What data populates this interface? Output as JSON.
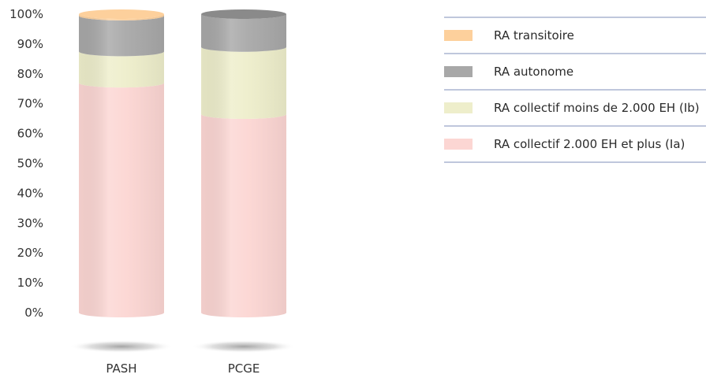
{
  "chart_data": {
    "type": "bar",
    "stacked": true,
    "categories": [
      "PASH",
      "PCGE"
    ],
    "y_ticks": [
      "0%",
      "10%",
      "20%",
      "30%",
      "40%",
      "50%",
      "60%",
      "70%",
      "80%",
      "90%",
      "100%"
    ],
    "ylim": [
      0,
      100
    ],
    "grid": false,
    "legend_position": "top-right",
    "series": [
      {
        "name": "RA collectif 2.000 EH et plus (Ia)",
        "color": "#fcd6d3",
        "values": [
          77,
          66.5
        ]
      },
      {
        "name": "RA collectif  moins de 2.000 EH (Ib)",
        "color": "#eeeecb",
        "values": [
          10.5,
          22.5
        ]
      },
      {
        "name": "RA autonome",
        "color": "#a8a8a8",
        "values": [
          12,
          11
        ]
      },
      {
        "name": "RA transitoire",
        "color": "#fdd09c",
        "values": [
          0.5,
          0
        ]
      }
    ],
    "legend_order": [
      "RA transitoire",
      "RA autonome",
      "RA collectif  moins de 2.000 EH (Ib)",
      "RA collectif 2.000 EH et plus (Ia)"
    ]
  }
}
